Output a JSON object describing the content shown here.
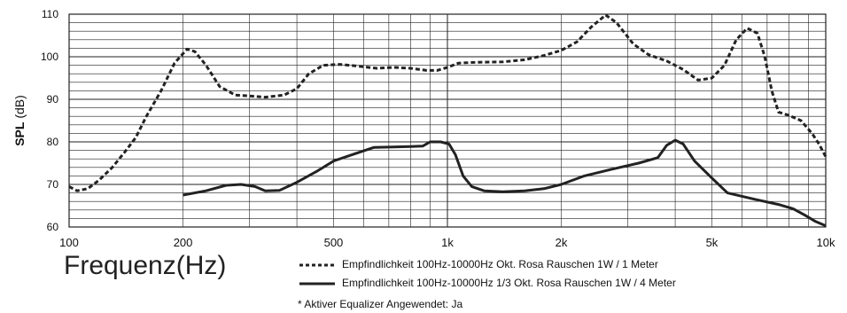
{
  "chart_data": {
    "type": "line",
    "xscale": "log",
    "xlim": [
      100,
      10000
    ],
    "ylim": [
      60,
      110
    ],
    "ylabel_bold": "SPL",
    "ylabel_unit": "(dB)",
    "xlabel": "Frequenz(Hz)",
    "grid": true,
    "yticks": [
      60,
      70,
      80,
      90,
      100,
      110
    ],
    "xticks": [
      {
        "value": 100,
        "label": "100"
      },
      {
        "value": 200,
        "label": "200"
      },
      {
        "value": 500,
        "label": "500"
      },
      {
        "value": 1000,
        "label": "1k"
      },
      {
        "value": 2000,
        "label": "2k"
      },
      {
        "value": 5000,
        "label": "5k"
      },
      {
        "value": 10000,
        "label": "10k"
      }
    ],
    "legend_placement": "bottom",
    "series": [
      {
        "name": "Empfindlichkeit 100Hz-10000Hz Okt. Rosa Rauschen 1W / 1 Meter",
        "style": "dashed",
        "color": "#222222",
        "points": [
          [
            100,
            69.5
          ],
          [
            105,
            68.5
          ],
          [
            112,
            69
          ],
          [
            120,
            71
          ],
          [
            130,
            74
          ],
          [
            140,
            77.5
          ],
          [
            150,
            81
          ],
          [
            160,
            86
          ],
          [
            175,
            92
          ],
          [
            190,
            98.5
          ],
          [
            205,
            101.8
          ],
          [
            215,
            101.2
          ],
          [
            230,
            98
          ],
          [
            250,
            93
          ],
          [
            275,
            91
          ],
          [
            300,
            90.8
          ],
          [
            330,
            90.5
          ],
          [
            370,
            91
          ],
          [
            400,
            92.5
          ],
          [
            430,
            96
          ],
          [
            470,
            98
          ],
          [
            520,
            98.2
          ],
          [
            580,
            97.8
          ],
          [
            650,
            97.3
          ],
          [
            720,
            97.5
          ],
          [
            800,
            97.3
          ],
          [
            880,
            96.8
          ],
          [
            940,
            96.8
          ],
          [
            1000,
            97.5
          ],
          [
            1070,
            98.5
          ],
          [
            1200,
            98.7
          ],
          [
            1400,
            98.8
          ],
          [
            1600,
            99.3
          ],
          [
            1800,
            100.3
          ],
          [
            2000,
            101.5
          ],
          [
            2200,
            103.5
          ],
          [
            2400,
            107
          ],
          [
            2620,
            109.8
          ],
          [
            2800,
            108
          ],
          [
            3100,
            103
          ],
          [
            3400,
            100.5
          ],
          [
            3800,
            99
          ],
          [
            4200,
            97
          ],
          [
            4600,
            94.5
          ],
          [
            5000,
            95
          ],
          [
            5400,
            98
          ],
          [
            5800,
            104
          ],
          [
            6200,
            106.7
          ],
          [
            6600,
            105.5
          ],
          [
            6900,
            100
          ],
          [
            7200,
            92
          ],
          [
            7500,
            87
          ],
          [
            8000,
            86.2
          ],
          [
            8600,
            85
          ],
          [
            9200,
            82
          ],
          [
            9600,
            79.5
          ],
          [
            10000,
            76.5
          ]
        ]
      },
      {
        "name": "Empfindlichkeit 100Hz-10000Hz 1/3 Okt. Rosa Rauschen 1W / 4 Meter",
        "style": "solid",
        "color": "#222222",
        "points": [
          [
            200,
            67.5
          ],
          [
            230,
            68.5
          ],
          [
            260,
            69.8
          ],
          [
            285,
            70
          ],
          [
            310,
            69.5
          ],
          [
            330,
            68.5
          ],
          [
            360,
            68.6
          ],
          [
            400,
            70.5
          ],
          [
            450,
            73
          ],
          [
            500,
            75.5
          ],
          [
            560,
            77
          ],
          [
            640,
            78.7
          ],
          [
            720,
            78.8
          ],
          [
            800,
            78.9
          ],
          [
            860,
            79
          ],
          [
            900,
            80
          ],
          [
            960,
            80
          ],
          [
            1010,
            79.5
          ],
          [
            1050,
            77
          ],
          [
            1100,
            72
          ],
          [
            1160,
            69.5
          ],
          [
            1250,
            68.5
          ],
          [
            1400,
            68.3
          ],
          [
            1600,
            68.5
          ],
          [
            1800,
            69
          ],
          [
            2000,
            70
          ],
          [
            2300,
            72
          ],
          [
            2700,
            73.5
          ],
          [
            3200,
            75
          ],
          [
            3600,
            76.3
          ],
          [
            3800,
            79.2
          ],
          [
            4000,
            80.4
          ],
          [
            4200,
            79.5
          ],
          [
            4500,
            75.5
          ],
          [
            5000,
            71.5
          ],
          [
            5500,
            68
          ],
          [
            6500,
            66.5
          ],
          [
            7500,
            65.3
          ],
          [
            8200,
            64.3
          ],
          [
            8800,
            62.8
          ],
          [
            9400,
            61.3
          ],
          [
            10000,
            60.3
          ]
        ]
      }
    ],
    "legend": [
      {
        "style": "dashed",
        "label": "Empfindlichkeit 100Hz-10000Hz Okt. Rosa Rauschen 1W / 1 Meter"
      },
      {
        "style": "solid",
        "label": "Empfindlichkeit 100Hz-10000Hz 1/3 Okt. Rosa Rauschen 1W / 4 Meter"
      }
    ],
    "note": "* Aktiver Equalizer Angewendet: Ja"
  }
}
